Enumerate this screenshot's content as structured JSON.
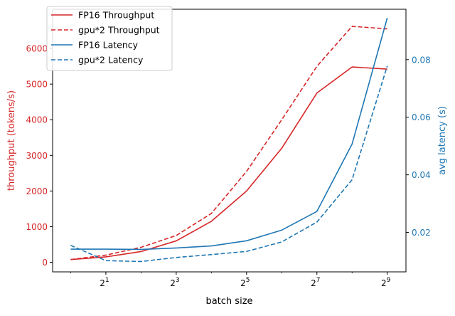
{
  "chart_data": {
    "type": "line",
    "x_label": "batch size",
    "x_values": [
      1,
      2,
      4,
      8,
      16,
      32,
      64,
      128,
      256,
      512
    ],
    "x_ticks": [
      {
        "value": 2,
        "base": "2",
        "exp": "1"
      },
      {
        "value": 8,
        "base": "2",
        "exp": "3"
      },
      {
        "value": 32,
        "base": "2",
        "exp": "5"
      },
      {
        "value": 128,
        "base": "2",
        "exp": "7"
      },
      {
        "value": 512,
        "base": "2",
        "exp": "9"
      }
    ],
    "x_scale": "log2",
    "xlim": [
      0.7,
      740
    ],
    "y_left": {
      "label": "throughput (tokens/s)",
      "color": "#d62728",
      "ylim": [
        -270,
        7100
      ],
      "ticks": [
        0,
        1000,
        2000,
        3000,
        4000,
        5000,
        6000
      ],
      "tick_labels": [
        "0",
        "1000",
        "2000",
        "3000",
        "4000",
        "5000",
        "6000"
      ]
    },
    "y_right": {
      "label": "avg latency (s)",
      "color": "#1f77b4",
      "ylim": [
        0.0063,
        0.0975
      ],
      "ticks": [
        0.02,
        0.04,
        0.06,
        0.08
      ],
      "tick_labels": [
        "0.02",
        "0.04",
        "0.06",
        "0.08"
      ]
    },
    "series": [
      {
        "name": "FP16 Throughput",
        "axis": "left",
        "color": "#d62728",
        "dash": "solid",
        "values": [
          75,
          150,
          300,
          600,
          1150,
          2000,
          3200,
          4750,
          5480,
          5420
        ]
      },
      {
        "name": "gpu*2 Throughput",
        "axis": "left",
        "color": "#d62728",
        "dash": "dashed",
        "values": [
          75,
          200,
          420,
          750,
          1370,
          2550,
          4000,
          5500,
          6620,
          6550
        ]
      },
      {
        "name": "FP16 Latency",
        "axis": "right",
        "color": "#1f77b4",
        "dash": "solid",
        "values": [
          0.0142,
          0.0142,
          0.0141,
          0.0146,
          0.0153,
          0.0171,
          0.0208,
          0.0273,
          0.0507,
          0.0945
        ]
      },
      {
        "name": "gpu*2 Latency",
        "axis": "right",
        "color": "#1f77b4",
        "dash": "dashed",
        "values": [
          0.0155,
          0.0102,
          0.0099,
          0.0113,
          0.0123,
          0.0134,
          0.0167,
          0.0236,
          0.0383,
          0.0778
        ]
      }
    ],
    "legend": {
      "placement": "top-left",
      "entries": [
        "FP16 Throughput",
        "gpu*2 Throughput",
        "FP16 Latency",
        "gpu*2 Latency"
      ]
    },
    "grid": false
  }
}
